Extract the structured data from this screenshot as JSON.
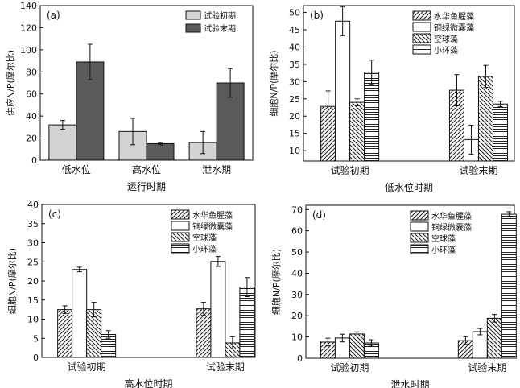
{
  "chart_data": [
    {
      "panel_label": "(a)",
      "type": "bar",
      "categories": [
        "低水位",
        "高水位",
        "泄水期"
      ],
      "xlabel": "运行时期",
      "ylabel": "供应N/P(摩尔比)",
      "ylim": [
        0,
        140
      ],
      "yticks": [
        0,
        20,
        40,
        60,
        80,
        100,
        120,
        140
      ],
      "grid": false,
      "legend_position": "top-right",
      "series": [
        {
          "name": "试验初期",
          "values": [
            32,
            26,
            16
          ],
          "errors": [
            4,
            12,
            10
          ],
          "color": "#d3d3d3",
          "pattern": "solid"
        },
        {
          "name": "试验末期",
          "values": [
            89,
            15,
            70
          ],
          "errors": [
            16,
            1,
            13
          ],
          "color": "#5a5a5a",
          "pattern": "solid"
        }
      ]
    },
    {
      "panel_label": "(b)",
      "type": "bar",
      "categories": [
        "试验初期",
        "试验末期"
      ],
      "xlabel": "低水位时期",
      "ylabel": "细胞N/P(摩尔比)",
      "ylim": [
        7,
        52
      ],
      "yticks": [
        10,
        15,
        20,
        25,
        30,
        35,
        40,
        45,
        50
      ],
      "grid": false,
      "legend_position": "top-right",
      "series": [
        {
          "name": "水华鱼腥藻",
          "values": [
            22.8,
            27.5
          ],
          "errors": [
            4.5,
            4.5
          ],
          "color": "#222222",
          "pattern": "diag-slash"
        },
        {
          "name": "铜绿微囊藻",
          "values": [
            47.5,
            13.2
          ],
          "errors": [
            4.2,
            4.2
          ],
          "color": "#222222",
          "pattern": "empty"
        },
        {
          "name": "空球藻",
          "values": [
            24.0,
            31.5
          ],
          "errors": [
            1.0,
            3.2
          ],
          "color": "#222222",
          "pattern": "diag-back"
        },
        {
          "name": "小环藻",
          "values": [
            32.7,
            23.5
          ],
          "errors": [
            3.5,
            0.8
          ],
          "color": "#222222",
          "pattern": "horizontal"
        }
      ]
    },
    {
      "panel_label": "(c)",
      "type": "bar",
      "categories": [
        "试验初期",
        "试验末期"
      ],
      "xlabel": "高水位时期",
      "ylabel": "细胞N/P(摩尔比)",
      "ylim": [
        0,
        40
      ],
      "yticks": [
        0,
        5,
        10,
        15,
        20,
        25,
        30,
        35,
        40
      ],
      "grid": false,
      "legend_position": "top-right",
      "series": [
        {
          "name": "水华鱼腥藻",
          "values": [
            12.5,
            12.7
          ],
          "errors": [
            1.0,
            1.7
          ],
          "color": "#222222",
          "pattern": "diag-slash"
        },
        {
          "name": "铜绿微囊藻",
          "values": [
            23.0,
            25.1
          ],
          "errors": [
            0.6,
            1.3
          ],
          "color": "#222222",
          "pattern": "empty"
        },
        {
          "name": "空球藻",
          "values": [
            12.5,
            3.8
          ],
          "errors": [
            1.9,
            1.6
          ],
          "color": "#222222",
          "pattern": "diag-back"
        },
        {
          "name": "小环藻",
          "values": [
            6.0,
            18.4
          ],
          "errors": [
            1.0,
            2.5
          ],
          "color": "#222222",
          "pattern": "horizontal"
        }
      ]
    },
    {
      "panel_label": "(d)",
      "type": "bar",
      "categories": [
        "试验初期",
        "试验末期"
      ],
      "xlabel": "泄水时期",
      "ylabel": "细胞N/P(摩尔比)",
      "ylim": [
        0,
        72
      ],
      "yticks": [
        0,
        10,
        20,
        30,
        40,
        50,
        60,
        70
      ],
      "grid": false,
      "legend_position": "top-right",
      "series": [
        {
          "name": "水华鱼腥藻",
          "values": [
            7.6,
            8.3
          ],
          "errors": [
            1.8,
            1.8
          ],
          "color": "#222222",
          "pattern": "diag-slash"
        },
        {
          "name": "铜绿微囊藻",
          "values": [
            9.5,
            12.5
          ],
          "errors": [
            1.8,
            1.5
          ],
          "color": "#222222",
          "pattern": "empty"
        },
        {
          "name": "空球藻",
          "values": [
            11.4,
            18.8
          ],
          "errors": [
            1.0,
            1.8
          ],
          "color": "#222222",
          "pattern": "diag-back"
        },
        {
          "name": "小环藻",
          "values": [
            7.2,
            67.8
          ],
          "errors": [
            1.5,
            1.2
          ],
          "color": "#222222",
          "pattern": "horizontal"
        }
      ]
    }
  ]
}
